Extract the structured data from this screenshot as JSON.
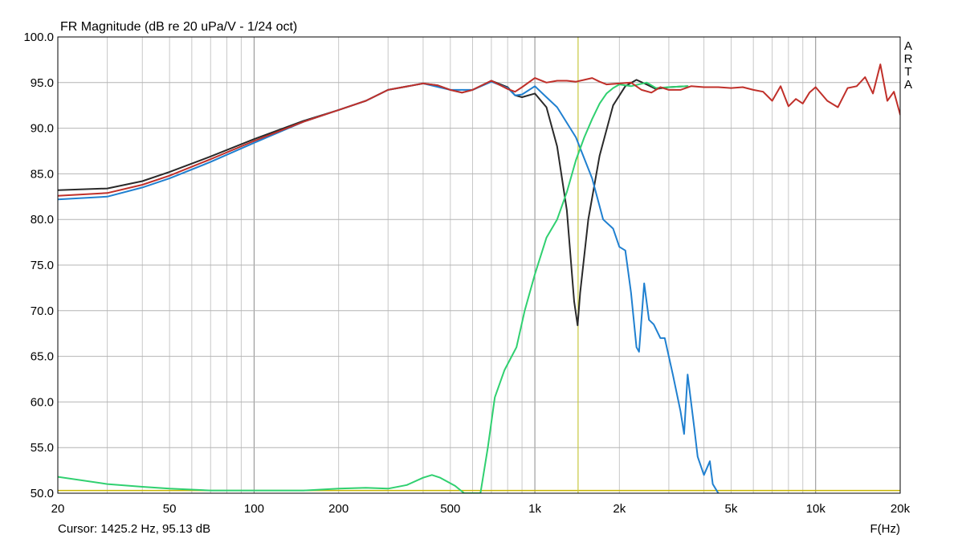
{
  "chart_data": {
    "type": "line",
    "title": "FR Magnitude (dB re 20 uPa/V - 1/24 oct)",
    "xlabel": "F(Hz)",
    "ylabel": "",
    "xscale": "log",
    "xlim": [
      20,
      20000
    ],
    "ylim": [
      50,
      100
    ],
    "grid": true,
    "legend": "none",
    "watermark": "ARTA",
    "y_ticks": [
      {
        "value": 50,
        "label": "50.0"
      },
      {
        "value": 55,
        "label": "55.0"
      },
      {
        "value": 60,
        "label": "60.0"
      },
      {
        "value": 65,
        "label": "65.0"
      },
      {
        "value": 70,
        "label": "70.0"
      },
      {
        "value": 75,
        "label": "75.0"
      },
      {
        "value": 80,
        "label": "80.0"
      },
      {
        "value": 85,
        "label": "85.0"
      },
      {
        "value": 90,
        "label": "90.0"
      },
      {
        "value": 95,
        "label": "95.0"
      },
      {
        "value": 100,
        "label": "100.0"
      }
    ],
    "x_ticks": [
      {
        "value": 20,
        "label": "20"
      },
      {
        "value": 50,
        "label": "50"
      },
      {
        "value": 100,
        "label": "100"
      },
      {
        "value": 200,
        "label": "200"
      },
      {
        "value": 500,
        "label": "500"
      },
      {
        "value": 1000,
        "label": "1k"
      },
      {
        "value": 2000,
        "label": "2k"
      },
      {
        "value": 5000,
        "label": "5k"
      },
      {
        "value": 10000,
        "label": "10k"
      },
      {
        "value": 20000,
        "label": "20k"
      }
    ],
    "cursor": {
      "x": 1425.2,
      "label": "Cursor: 1425.2 Hz, 95.13 dB",
      "color": "#c8c840"
    },
    "reference_line": {
      "y": 50.3,
      "color": "#c8b400"
    },
    "series": [
      {
        "color": "#2a2a2a",
        "points": [
          [
            20,
            83.2
          ],
          [
            30,
            83.4
          ],
          [
            40,
            84.2
          ],
          [
            50,
            85.2
          ],
          [
            70,
            86.9
          ],
          [
            100,
            88.8
          ],
          [
            150,
            90.8
          ],
          [
            200,
            92.0
          ],
          [
            250,
            93.0
          ],
          [
            300,
            94.2
          ],
          [
            400,
            94.9
          ],
          [
            450,
            94.7
          ],
          [
            500,
            94.2
          ],
          [
            550,
            93.9
          ],
          [
            600,
            94.2
          ],
          [
            700,
            95.2
          ],
          [
            800,
            94.5
          ],
          [
            850,
            93.6
          ],
          [
            900,
            93.4
          ],
          [
            1000,
            93.8
          ],
          [
            1100,
            92.3
          ],
          [
            1200,
            88.0
          ],
          [
            1300,
            81.0
          ],
          [
            1380,
            71.0
          ],
          [
            1420,
            68.4
          ],
          [
            1450,
            72.0
          ],
          [
            1550,
            80.0
          ],
          [
            1700,
            87.0
          ],
          [
            1900,
            92.5
          ],
          [
            2100,
            94.6
          ],
          [
            2300,
            95.3
          ],
          [
            2500,
            94.8
          ],
          [
            2700,
            94.3
          ],
          [
            3000,
            94.5
          ],
          [
            3500,
            94.6
          ]
        ]
      },
      {
        "color": "#2080d0",
        "points": [
          [
            20,
            82.2
          ],
          [
            30,
            82.5
          ],
          [
            40,
            83.5
          ],
          [
            50,
            84.5
          ],
          [
            70,
            86.3
          ],
          [
            100,
            88.4
          ],
          [
            150,
            90.7
          ],
          [
            200,
            92.0
          ],
          [
            250,
            93.0
          ],
          [
            300,
            94.2
          ],
          [
            400,
            94.9
          ],
          [
            500,
            94.2
          ],
          [
            600,
            94.2
          ],
          [
            700,
            95.1
          ],
          [
            800,
            94.4
          ],
          [
            850,
            93.6
          ],
          [
            900,
            93.7
          ],
          [
            1000,
            94.6
          ],
          [
            1100,
            93.4
          ],
          [
            1200,
            92.3
          ],
          [
            1400,
            89.0
          ],
          [
            1600,
            84.5
          ],
          [
            1750,
            80.0
          ],
          [
            1900,
            79.0
          ],
          [
            2000,
            77.0
          ],
          [
            2100,
            76.6
          ],
          [
            2200,
            72.0
          ],
          [
            2300,
            66.0
          ],
          [
            2350,
            65.5
          ],
          [
            2450,
            73.0
          ],
          [
            2550,
            69.0
          ],
          [
            2650,
            68.5
          ],
          [
            2800,
            67.0
          ],
          [
            2900,
            67.0
          ],
          [
            3100,
            63.0
          ],
          [
            3300,
            59.0
          ],
          [
            3400,
            56.5
          ],
          [
            3500,
            63.0
          ],
          [
            3700,
            57.0
          ],
          [
            3800,
            54.0
          ],
          [
            4000,
            52.0
          ],
          [
            4200,
            53.5
          ],
          [
            4300,
            51.0
          ],
          [
            4500,
            50.0
          ]
        ]
      },
      {
        "color": "#30d070",
        "points": [
          [
            20,
            51.8
          ],
          [
            30,
            51.0
          ],
          [
            40,
            50.7
          ],
          [
            50,
            50.5
          ],
          [
            70,
            50.3
          ],
          [
            100,
            50.3
          ],
          [
            150,
            50.3
          ],
          [
            200,
            50.5
          ],
          [
            250,
            50.6
          ],
          [
            300,
            50.5
          ],
          [
            350,
            50.9
          ],
          [
            400,
            51.7
          ],
          [
            430,
            52.0
          ],
          [
            460,
            51.7
          ],
          [
            520,
            50.8
          ],
          [
            560,
            50.0
          ],
          [
            640,
            50.0
          ],
          [
            680,
            55.0
          ],
          [
            720,
            60.5
          ],
          [
            780,
            63.5
          ],
          [
            860,
            66.0
          ],
          [
            920,
            70.0
          ],
          [
            1000,
            74.0
          ],
          [
            1100,
            78.0
          ],
          [
            1200,
            80.0
          ],
          [
            1300,
            83.0
          ],
          [
            1400,
            86.5
          ],
          [
            1500,
            89.0
          ],
          [
            1600,
            91.0
          ],
          [
            1700,
            92.7
          ],
          [
            1800,
            93.8
          ],
          [
            1900,
            94.4
          ],
          [
            2000,
            94.8
          ],
          [
            2200,
            94.6
          ],
          [
            2500,
            95.0
          ],
          [
            2700,
            94.4
          ],
          [
            3000,
            94.5
          ],
          [
            3500,
            94.6
          ]
        ]
      },
      {
        "color": "#c0302a",
        "points": [
          [
            20,
            82.6
          ],
          [
            30,
            82.9
          ],
          [
            40,
            83.8
          ],
          [
            50,
            84.8
          ],
          [
            70,
            86.6
          ],
          [
            100,
            88.6
          ],
          [
            150,
            90.7
          ],
          [
            200,
            92.0
          ],
          [
            250,
            93.0
          ],
          [
            300,
            94.2
          ],
          [
            400,
            94.9
          ],
          [
            450,
            94.7
          ],
          [
            500,
            94.2
          ],
          [
            550,
            93.9
          ],
          [
            600,
            94.2
          ],
          [
            700,
            95.2
          ],
          [
            800,
            94.3
          ],
          [
            850,
            94.0
          ],
          [
            900,
            94.5
          ],
          [
            1000,
            95.5
          ],
          [
            1100,
            95.0
          ],
          [
            1200,
            95.2
          ],
          [
            1300,
            95.2
          ],
          [
            1400,
            95.1
          ],
          [
            1500,
            95.3
          ],
          [
            1600,
            95.5
          ],
          [
            1700,
            95.1
          ],
          [
            1800,
            94.8
          ],
          [
            2000,
            94.9
          ],
          [
            2200,
            95.0
          ],
          [
            2400,
            94.2
          ],
          [
            2600,
            93.9
          ],
          [
            2800,
            94.5
          ],
          [
            3000,
            94.2
          ],
          [
            3300,
            94.2
          ],
          [
            3600,
            94.6
          ],
          [
            4000,
            94.5
          ],
          [
            4500,
            94.5
          ],
          [
            5000,
            94.4
          ],
          [
            5500,
            94.5
          ],
          [
            6000,
            94.2
          ],
          [
            6500,
            94.0
          ],
          [
            7000,
            93.0
          ],
          [
            7500,
            94.6
          ],
          [
            8000,
            92.4
          ],
          [
            8500,
            93.2
          ],
          [
            9000,
            92.7
          ],
          [
            9500,
            93.9
          ],
          [
            10000,
            94.5
          ],
          [
            11000,
            93.0
          ],
          [
            12000,
            92.3
          ],
          [
            13000,
            94.4
          ],
          [
            14000,
            94.6
          ],
          [
            15000,
            95.6
          ],
          [
            16000,
            93.8
          ],
          [
            17000,
            97.0
          ],
          [
            18000,
            93.0
          ],
          [
            19000,
            94.0
          ],
          [
            20000,
            91.5
          ]
        ]
      }
    ]
  }
}
